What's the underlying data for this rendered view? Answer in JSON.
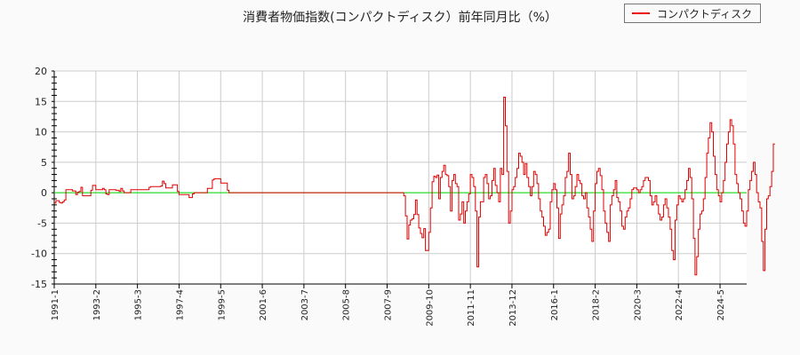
{
  "chart_data": {
    "type": "line",
    "title": "消費者物価指数(コンパクトディスク）前年同月比（%）",
    "xlabel": "",
    "ylabel": "",
    "ylim": [
      -15,
      20
    ],
    "yticks": [
      20,
      15,
      10,
      5,
      0,
      -5,
      -10,
      -15
    ],
    "xticks": [
      "1991-1",
      "1993-2",
      "1995-3",
      "1997-4",
      "1999-5",
      "2001-6",
      "2003-7",
      "2005-8",
      "2007-9",
      "2009-10",
      "2011-11",
      "2013-12",
      "2016-1",
      "2018-2",
      "2020-3",
      "2022-4",
      "2024-5"
    ],
    "grid": true,
    "legend_position": "top-right",
    "reference_line": {
      "y": 0,
      "color": "#00dd00"
    },
    "series": [
      {
        "name": "コンパクトディスク",
        "color": "#e00000",
        "start": "1991-1",
        "frequency": "monthly",
        "values": [
          -1.7,
          -1.3,
          -1.3,
          -1.6,
          -1.7,
          -1.5,
          -1.2,
          0.5,
          0.5,
          0.5,
          0.5,
          0.3,
          0.3,
          -0.3,
          0.1,
          0.2,
          0.9,
          -0.5,
          -0.5,
          -0.5,
          -0.5,
          -0.5,
          0.4,
          1.2,
          1.2,
          0.5,
          0.5,
          0.5,
          0.5,
          0.7,
          0.5,
          -0.2,
          -0.3,
          0.5,
          0.5,
          0.5,
          0.5,
          0.4,
          0.4,
          0.2,
          0.7,
          0.3,
          0.0,
          0.0,
          0.0,
          0.0,
          0.5,
          0.5,
          0.5,
          0.5,
          0.5,
          0.5,
          0.5,
          0.5,
          0.5,
          0.5,
          0.5,
          0.9,
          1.0,
          1.0,
          1.0,
          1.0,
          1.0,
          1.0,
          1.1,
          1.9,
          1.5,
          0.8,
          0.8,
          0.8,
          0.8,
          1.3,
          1.3,
          1.3,
          0.2,
          -0.3,
          -0.3,
          -0.3,
          -0.3,
          -0.3,
          -0.3,
          -0.8,
          -0.8,
          -0.2,
          0.0,
          0.0,
          0.0,
          0.0,
          0.0,
          0.0,
          0.0,
          0.0,
          0.7,
          0.7,
          0.7,
          2.1,
          2.3,
          2.3,
          2.3,
          2.3,
          1.6,
          1.6,
          1.6,
          1.6,
          0.4,
          0.0,
          0.0,
          0.0,
          0.0,
          0.0,
          0.0,
          0.0,
          0.0,
          0.0,
          0.0,
          0.0,
          0.0,
          0.0,
          0.0,
          0.0,
          0.0,
          0.0,
          0.0,
          0.0,
          0.0,
          0.0,
          0.0,
          0.0,
          0.0,
          0.0,
          0.0,
          0.0,
          0.0,
          0.0,
          0.0,
          0.0,
          0.0,
          0.0,
          0.0,
          0.0,
          0.0,
          0.0,
          0.0,
          0.0,
          0.0,
          0.0,
          0.0,
          0.0,
          0.0,
          0.0,
          0.0,
          0.0,
          0.0,
          0.0,
          0.0,
          0.0,
          0.0,
          0.0,
          0.0,
          0.0,
          0.0,
          0.0,
          0.0,
          0.0,
          0.0,
          0.0,
          0.0,
          0.0,
          0.0,
          0.0,
          0.0,
          0.0,
          0.0,
          0.0,
          0.0,
          0.0,
          0.0,
          0.0,
          0.0,
          0.0,
          0.0,
          0.0,
          0.0,
          0.0,
          0.0,
          0.0,
          0.0,
          0.0,
          0.0,
          0.0,
          0.0,
          0.0,
          0.0,
          0.0,
          0.0,
          0.0,
          0.0,
          0.0,
          0.0,
          0.0,
          0.0,
          0.0,
          0.0,
          0.0,
          0.0,
          0.0,
          0.0,
          0.0,
          0.0,
          0.0,
          -0.5,
          -3.8,
          -7.6,
          -5.3,
          -4.5,
          -4.3,
          -3.6,
          -1.2,
          -3.6,
          -5.8,
          -6.7,
          -7.4,
          -5.9,
          -9.5,
          -9.5,
          -6.5,
          -2.5,
          1.8,
          2.7,
          2.5,
          2.9,
          -1.0,
          2.5,
          3.5,
          4.5,
          3.0,
          2.8,
          1.0,
          -3.0,
          2.0,
          3.0,
          1.5,
          1.0,
          -4.5,
          -3.5,
          -1.5,
          -5.0,
          -3.0,
          -1.5,
          -0.2,
          3.0,
          2.5,
          1.0,
          -3.0,
          -12.2,
          -4.0,
          -1.5,
          -1.5,
          2.5,
          3.0,
          1.5,
          -1.0,
          -0.5,
          2.0,
          4.0,
          1.2,
          0.0,
          -1.5,
          4.0,
          3.0,
          15.7,
          11.0,
          3.5,
          -5.0,
          -3.0,
          0.5,
          1.0,
          2.5,
          4.0,
          6.5,
          6.0,
          5.0,
          3.0,
          4.8,
          2.5,
          1.0,
          -0.5,
          1.0,
          3.5,
          3.0,
          1.5,
          -1.0,
          -3.0,
          -4.0,
          -5.5,
          -7.0,
          -6.5,
          -6.0,
          -1.5,
          0.5,
          1.5,
          0.5,
          -2.5,
          -7.5,
          -3.5,
          -2.0,
          -0.5,
          2.5,
          3.5,
          6.5,
          3.0,
          -1.0,
          -0.5,
          1.0,
          3.0,
          2.0,
          1.5,
          -0.5,
          -1.0,
          0.0,
          -2.5,
          -4.0,
          -6.0,
          -8.0,
          -3.0,
          1.5,
          3.5,
          4.0,
          2.8,
          0.5,
          -3.0,
          -5.0,
          -6.5,
          -8.0,
          -2.0,
          -0.5,
          0.5,
          2.0,
          -0.8,
          -1.5,
          -3.0,
          -5.5,
          -6.0,
          -4.0,
          -3.0,
          -2.5,
          -1.0,
          0.5,
          0.8,
          0.8,
          0.5,
          0.0,
          0.5,
          1.0,
          2.0,
          2.5,
          2.5,
          2.0,
          -0.5,
          -2.0,
          -1.5,
          -0.5,
          -2.0,
          -3.5,
          -4.5,
          -4.0,
          -2.0,
          -1.0,
          -2.5,
          -4.0,
          -6.0,
          -9.5,
          -11.0,
          -4.5,
          -2.0,
          -0.5,
          -1.0,
          -1.5,
          -1.0,
          0.5,
          2.0,
          4.0,
          2.5,
          -1.0,
          -7.5,
          -13.5,
          -10.5,
          -6.0,
          -3.5,
          -3.0,
          -1.0,
          2.5,
          6.5,
          9.0,
          11.5,
          10.0,
          6.0,
          3.0,
          0.5,
          -0.5,
          -1.5,
          0.0,
          2.0,
          5.0,
          8.0,
          10.0,
          12.0,
          11.0,
          8.0,
          3.0,
          1.5,
          0.0,
          -1.0,
          -3.0,
          -5.0,
          -5.5,
          -3.0,
          0.5,
          2.0,
          3.5,
          5.0,
          3.0,
          0.0,
          -1.5,
          -2.5,
          -8.0,
          -12.8,
          -6.0,
          -1.0,
          -0.5,
          1.0,
          3.5,
          8.0
        ]
      }
    ]
  },
  "legend": {
    "items": [
      {
        "label": "コンパクトディスク",
        "color": "#e00000"
      }
    ]
  }
}
